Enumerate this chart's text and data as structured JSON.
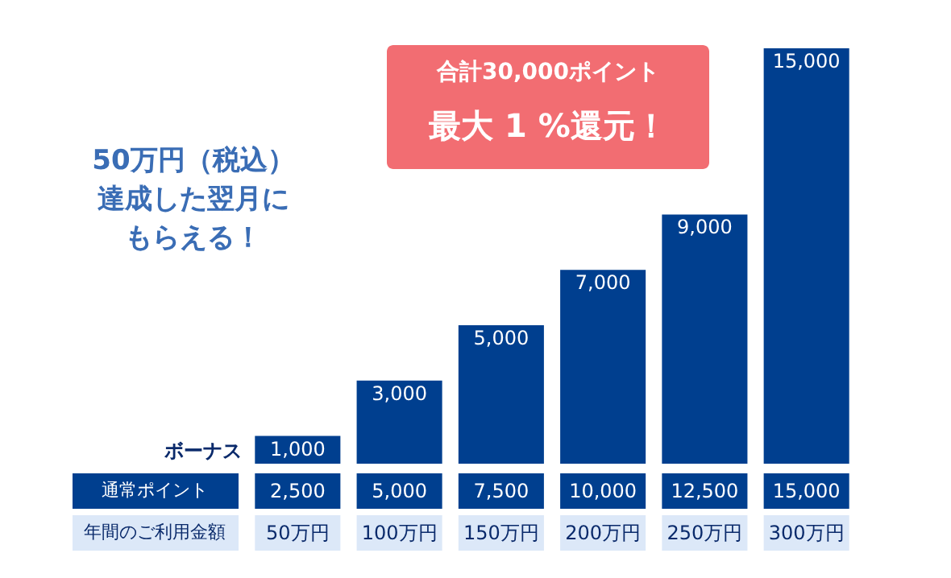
{
  "chart_data": {
    "type": "bar",
    "xlabel": "年間のご利用金額",
    "categories": [
      "50万円",
      "100万円",
      "150万円",
      "200万円",
      "250万円",
      "300万円"
    ],
    "series": [
      {
        "name": "ボーナス",
        "color": "#003f8f",
        "values": [
          1000,
          3000,
          5000,
          7000,
          9000,
          15000
        ],
        "value_labels": [
          "1,000",
          "3,000",
          "5,000",
          "7,000",
          "9,000",
          "15,000"
        ]
      }
    ],
    "annotations": [
      "通常ポイント",
      "2,500",
      "5,000",
      "7,500",
      "10,000",
      "12,500",
      "15,000",
      "50万円（税込）",
      "達成した翌月に",
      "もらえる！",
      "合計30,000ポイント",
      "最大 1 %還元！"
    ]
  }
}
